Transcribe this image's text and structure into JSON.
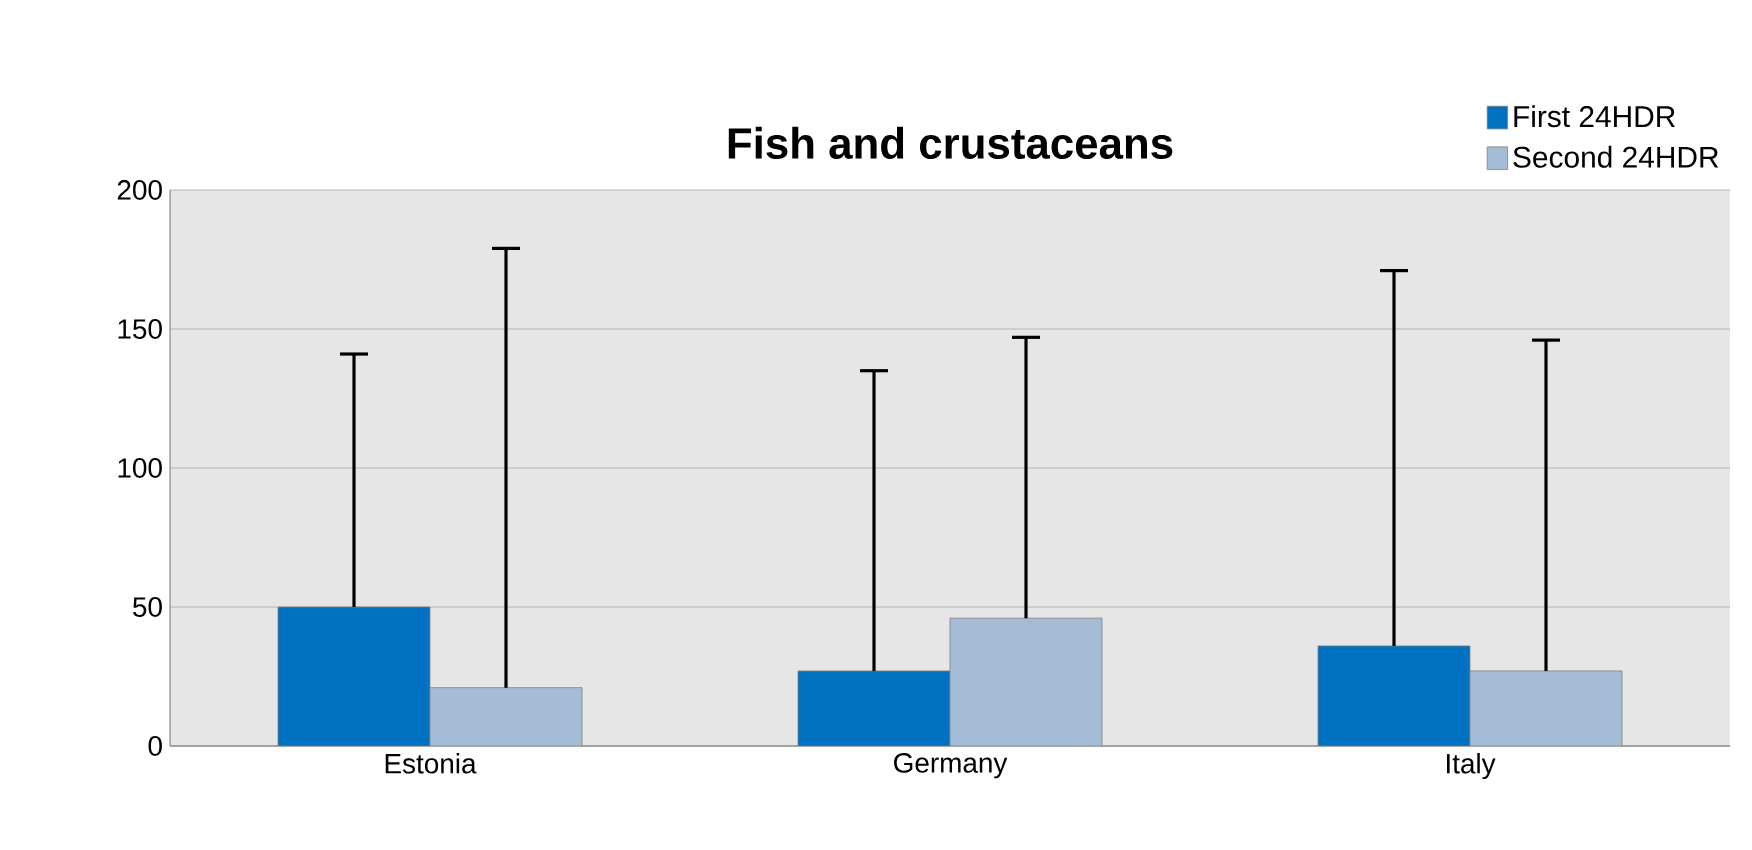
{
  "chart_data": {
    "type": "bar",
    "title": "Fish and crustaceans",
    "categories": [
      "Estonia",
      "Germany",
      "Italy"
    ],
    "series": [
      {
        "name": "First 24HDR",
        "color": "#0070c0",
        "values": [
          50,
          27,
          36
        ],
        "errors": [
          [
            50,
            141
          ],
          [
            27,
            135
          ],
          [
            36,
            171
          ]
        ]
      },
      {
        "name": "Second 24HDR",
        "color": "#a5bcd6",
        "values": [
          21,
          46,
          27
        ],
        "errors": [
          [
            21,
            179
          ],
          [
            46,
            147
          ],
          [
            27,
            146
          ]
        ]
      }
    ],
    "ylim": [
      0,
      200
    ],
    "yticks": [
      0,
      50,
      100,
      150,
      200
    ],
    "grid": "y",
    "legend": "top right"
  }
}
